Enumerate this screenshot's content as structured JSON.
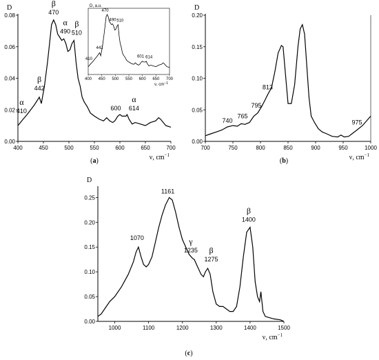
{
  "chart_data": [
    {
      "id": "a",
      "type": "line",
      "caption_letter": "a",
      "ylabel": "D",
      "xlabel": "ν, cm",
      "xlabel_sup": "−1",
      "xlim": [
        400,
        700
      ],
      "ylim": [
        0,
        0.08
      ],
      "xticks": [
        "400",
        "450",
        "500",
        "550",
        "600",
        "650",
        "700"
      ],
      "yticks": [
        "0.00",
        "0.02",
        "0.04",
        "0.06",
        "0.08"
      ],
      "x": [
        400,
        410,
        418,
        425,
        432,
        438,
        442,
        446,
        452,
        458,
        462,
        466,
        470,
        474,
        478,
        482,
        486,
        490,
        494,
        498,
        502,
        506,
        510,
        514,
        518,
        522,
        526,
        530,
        536,
        542,
        550,
        560,
        568,
        574,
        580,
        586,
        590,
        596,
        600,
        604,
        608,
        612,
        614,
        618,
        624,
        630,
        640,
        650,
        660,
        670,
        676,
        680,
        690,
        700
      ],
      "y": [
        0.01,
        0.014,
        0.017,
        0.02,
        0.023,
        0.026,
        0.028,
        0.024,
        0.035,
        0.05,
        0.062,
        0.074,
        0.077,
        0.074,
        0.068,
        0.066,
        0.064,
        0.065,
        0.062,
        0.057,
        0.058,
        0.062,
        0.064,
        0.05,
        0.04,
        0.035,
        0.028,
        0.025,
        0.022,
        0.018,
        0.016,
        0.014,
        0.013,
        0.015,
        0.013,
        0.012,
        0.013,
        0.016,
        0.017,
        0.016,
        0.016,
        0.016,
        0.017,
        0.014,
        0.011,
        0.012,
        0.011,
        0.01,
        0.012,
        0.013,
        0.015,
        0.014,
        0.01,
        0.009
      ],
      "annotations": [
        {
          "x": 410,
          "y": 0.014,
          "label": "410",
          "greek": "α"
        },
        {
          "x": 442,
          "y": 0.028,
          "label": "442",
          "greek": "β"
        },
        {
          "x": 470,
          "y": 0.077,
          "label": "470",
          "greek": "β"
        },
        {
          "x": 490,
          "y": 0.065,
          "label": "490",
          "greek": "α"
        },
        {
          "x": 510,
          "y": 0.064,
          "label": "510",
          "greek": "β"
        },
        {
          "x": 600,
          "y": 0.017,
          "label": "600",
          "greek": ""
        },
        {
          "x": 614,
          "y": 0.017,
          "label": "614",
          "greek": "α"
        }
      ],
      "inset": {
        "ylabel": "D, a.u.",
        "xlabel": "ν, cm",
        "xlabel_sup": "−1",
        "xlim": [
          400,
          700
        ],
        "xticks": [
          "400",
          "450",
          "500",
          "550",
          "600",
          "650",
          "700"
        ],
        "annotations": [
          {
            "x": 410,
            "label": "410"
          },
          {
            "x": 442,
            "label": "442"
          },
          {
            "x": 470,
            "label": "470"
          },
          {
            "x": 490,
            "label": "490"
          },
          {
            "x": 510,
            "label": "510"
          },
          {
            "x": 601,
            "label": "601"
          },
          {
            "x": 614,
            "label": "614"
          }
        ]
      }
    },
    {
      "id": "b",
      "type": "line",
      "caption_letter": "b",
      "ylabel": "D",
      "xlabel": "ν, cm",
      "xlabel_sup": "−1",
      "xlim": [
        700,
        1000
      ],
      "ylim": [
        0,
        0.2
      ],
      "xticks": [
        "700",
        "750",
        "800",
        "850",
        "900",
        "950",
        "1000"
      ],
      "yticks": [
        "0.00",
        "0.05",
        "0.10",
        "0.15",
        "0.20"
      ],
      "x": [
        700,
        710,
        720,
        730,
        740,
        750,
        758,
        765,
        772,
        780,
        788,
        795,
        802,
        808,
        813,
        820,
        826,
        832,
        838,
        841,
        845,
        850,
        856,
        862,
        868,
        872,
        876,
        880,
        884,
        888,
        892,
        898,
        905,
        912,
        920,
        930,
        940,
        946,
        952,
        960,
        966,
        975,
        985,
        1000
      ],
      "y": [
        0.009,
        0.012,
        0.015,
        0.018,
        0.023,
        0.025,
        0.024,
        0.028,
        0.027,
        0.03,
        0.04,
        0.045,
        0.055,
        0.065,
        0.074,
        0.085,
        0.11,
        0.14,
        0.152,
        0.15,
        0.11,
        0.06,
        0.06,
        0.09,
        0.15,
        0.178,
        0.185,
        0.17,
        0.12,
        0.07,
        0.04,
        0.03,
        0.02,
        0.015,
        0.012,
        0.008,
        0.007,
        0.01,
        0.007,
        0.008,
        0.012,
        0.018,
        0.025,
        0.04
      ],
      "annotations": [
        {
          "x": 740,
          "y": 0.023,
          "label": "740"
        },
        {
          "x": 765,
          "y": 0.028,
          "label": "765"
        },
        {
          "x": 795,
          "y": 0.045,
          "label": "795"
        },
        {
          "x": 813,
          "y": 0.074,
          "label": "813"
        },
        {
          "x": 975,
          "y": 0.018,
          "label": "975"
        }
      ]
    },
    {
      "id": "c",
      "type": "line",
      "caption_letter": "c",
      "ylabel": "D",
      "xlabel": "ν, cm",
      "xlabel_sup": "−1",
      "xlim": [
        950,
        1500
      ],
      "ylim": [
        0,
        0.27
      ],
      "xticks": [
        "1000",
        "1100",
        "1200",
        "1300",
        "1400",
        "1500"
      ],
      "yticks": [
        "0.00",
        "0.05",
        "0.10",
        "0.15",
        "0.20",
        "0.25"
      ],
      "x": [
        950,
        960,
        970,
        985,
        1000,
        1020,
        1040,
        1055,
        1063,
        1070,
        1078,
        1085,
        1093,
        1100,
        1110,
        1120,
        1130,
        1140,
        1150,
        1161,
        1170,
        1180,
        1190,
        1200,
        1210,
        1220,
        1230,
        1235,
        1245,
        1255,
        1262,
        1268,
        1275,
        1282,
        1290,
        1300,
        1310,
        1320,
        1330,
        1340,
        1350,
        1360,
        1370,
        1380,
        1390,
        1400,
        1408,
        1415,
        1422,
        1428,
        1432,
        1438,
        1445,
        1455,
        1470,
        1490,
        1500
      ],
      "y": [
        0.01,
        0.015,
        0.025,
        0.04,
        0.05,
        0.07,
        0.095,
        0.12,
        0.14,
        0.15,
        0.13,
        0.115,
        0.11,
        0.115,
        0.13,
        0.16,
        0.19,
        0.215,
        0.235,
        0.25,
        0.245,
        0.22,
        0.19,
        0.165,
        0.15,
        0.135,
        0.127,
        0.125,
        0.11,
        0.095,
        0.09,
        0.1,
        0.107,
        0.095,
        0.06,
        0.035,
        0.03,
        0.03,
        0.025,
        0.02,
        0.02,
        0.03,
        0.07,
        0.13,
        0.18,
        0.19,
        0.15,
        0.08,
        0.05,
        0.04,
        0.06,
        0.02,
        0.01,
        0.008,
        0.005,
        0.003,
        0.0
      ],
      "annotations": [
        {
          "x": 1070,
          "y": 0.15,
          "label": "1070",
          "greek": ""
        },
        {
          "x": 1161,
          "y": 0.25,
          "label": "1161",
          "greek": ""
        },
        {
          "x": 1235,
          "y": 0.125,
          "label": "1235",
          "greek": "γ"
        },
        {
          "x": 1275,
          "y": 0.107,
          "label": "1275",
          "greek": "β"
        },
        {
          "x": 1400,
          "y": 0.19,
          "label": "1400",
          "greek": "β"
        }
      ]
    }
  ]
}
